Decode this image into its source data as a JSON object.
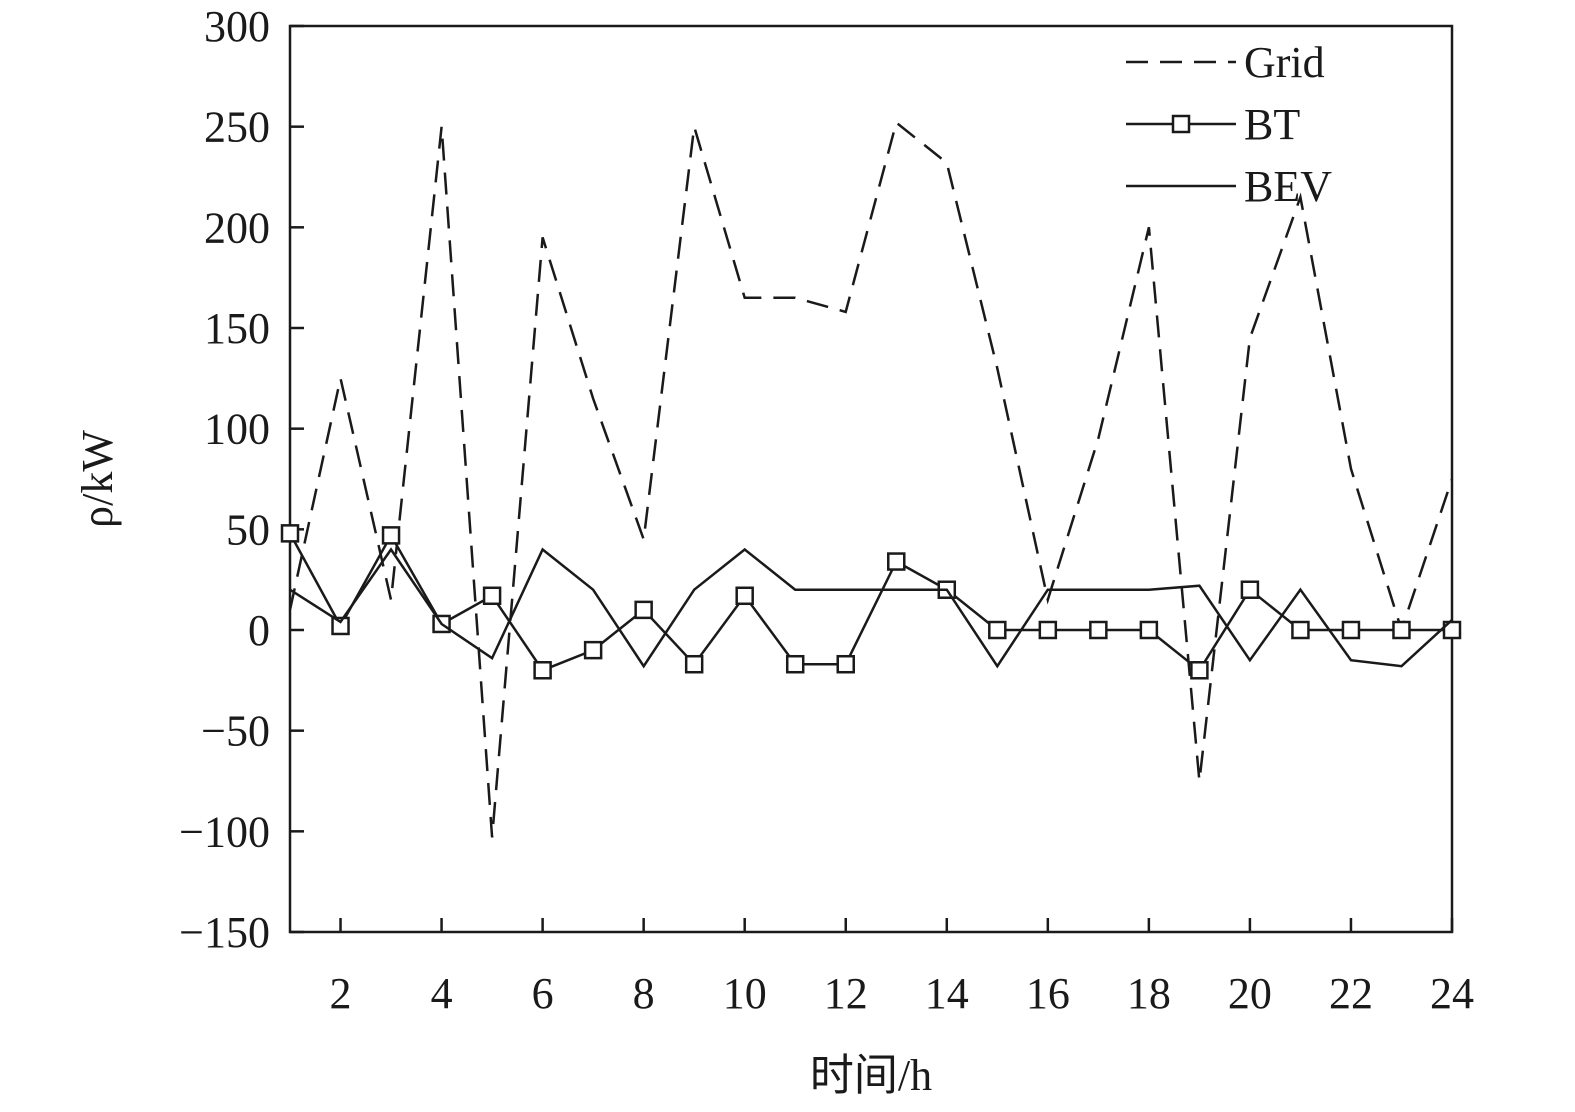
{
  "chart_data": {
    "type": "line",
    "xlabel": "时间/h",
    "ylabel": "ρ/kW",
    "xlim": [
      1,
      24
    ],
    "ylim": [
      -150,
      300
    ],
    "x_ticks": [
      2,
      4,
      6,
      8,
      10,
      12,
      14,
      16,
      18,
      20,
      22,
      24
    ],
    "y_ticks": [
      -150,
      -100,
      -50,
      0,
      50,
      100,
      150,
      200,
      250,
      300
    ],
    "legend_position": "top-right",
    "grid": false,
    "x": [
      1,
      2,
      3,
      4,
      5,
      6,
      7,
      8,
      9,
      10,
      11,
      12,
      13,
      14,
      15,
      16,
      17,
      18,
      19,
      20,
      21,
      22,
      23,
      24
    ],
    "series": [
      {
        "name": "Grid",
        "style": "dashed",
        "marker": "none",
        "color": "#1a1a1a",
        "values": [
          10,
          125,
          15,
          250,
          -103,
          195,
          115,
          45,
          250,
          165,
          165,
          158,
          252,
          232,
          130,
          15,
          95,
          200,
          -75,
          145,
          215,
          80,
          0,
          75
        ]
      },
      {
        "name": "BT",
        "style": "solid",
        "marker": "square",
        "color": "#1a1a1a",
        "values": [
          48,
          2,
          47,
          3,
          17,
          -20,
          -10,
          10,
          -17,
          17,
          -17,
          -17,
          34,
          20,
          0,
          0,
          0,
          0,
          -20,
          20,
          0,
          0,
          0,
          0
        ]
      },
      {
        "name": "BEV",
        "style": "solid",
        "marker": "none",
        "color": "#1a1a1a",
        "values": [
          20,
          4,
          40,
          3,
          -14,
          40,
          20,
          -18,
          20,
          40,
          20,
          20,
          20,
          20,
          -18,
          20,
          20,
          20,
          22,
          -15,
          20,
          -15,
          -18,
          5
        ]
      }
    ]
  }
}
